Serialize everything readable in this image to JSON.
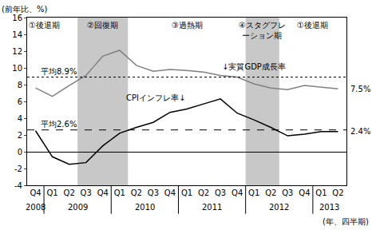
{
  "chart_data": {
    "type": "line",
    "y_label": "(前年比、%)",
    "x_label": "(年、四半期)",
    "categories": [
      "Q4",
      "Q1",
      "Q2",
      "Q3",
      "Q4",
      "Q1",
      "Q2",
      "Q3",
      "Q4",
      "Q1",
      "Q2",
      "Q3",
      "Q4",
      "Q1",
      "Q2",
      "Q3",
      "Q4",
      "Q1",
      "Q2"
    ],
    "category_years": [
      "2008",
      "2009",
      "2009",
      "2009",
      "2009",
      "2010",
      "2010",
      "2010",
      "2010",
      "2011",
      "2011",
      "2011",
      "2011",
      "2012",
      "2012",
      "2012",
      "2012",
      "2013",
      "2013"
    ],
    "ylim": [
      -4,
      16
    ],
    "yticks": [
      -4,
      -2,
      0,
      2,
      4,
      6,
      8,
      10,
      12,
      14,
      16
    ],
    "grid": false,
    "series": [
      {
        "name": "↓実質GDP成長率",
        "color": "#808080",
        "line_style": "solid",
        "values": [
          7.6,
          6.6,
          7.9,
          9.1,
          11.4,
          12.1,
          10.3,
          9.6,
          9.8,
          9.7,
          9.5,
          9.1,
          8.9,
          8.1,
          7.6,
          7.4,
          7.9,
          7.7,
          7.5
        ],
        "average": 8.9,
        "average_label": "平均8.9%",
        "end_label": "7.5%"
      },
      {
        "name": "CPIインフレ率↓",
        "color": "#000000",
        "line_style": "solid",
        "values": [
          2.5,
          -0.6,
          -1.5,
          -1.3,
          0.7,
          2.2,
          2.9,
          3.5,
          4.7,
          5.1,
          5.7,
          6.3,
          4.6,
          3.8,
          2.9,
          1.9,
          2.1,
          2.4,
          2.4
        ],
        "average": 2.6,
        "average_label": "平均2.6%",
        "end_label": "2.4%"
      }
    ],
    "phases": [
      {
        "label": "①後退期",
        "start": 0,
        "end": 1,
        "shaded": false
      },
      {
        "label": "②回復期",
        "start": 3,
        "end": 5,
        "shaded": true
      },
      {
        "label": "③過熱期",
        "start": 6,
        "end": 12,
        "shaded": false
      },
      {
        "label": "④スタグフレ\nーション期",
        "start": 13,
        "end": 14,
        "shaded": true
      },
      {
        "label": "①後退期",
        "start": 15,
        "end": 18,
        "shaded": false
      }
    ]
  }
}
